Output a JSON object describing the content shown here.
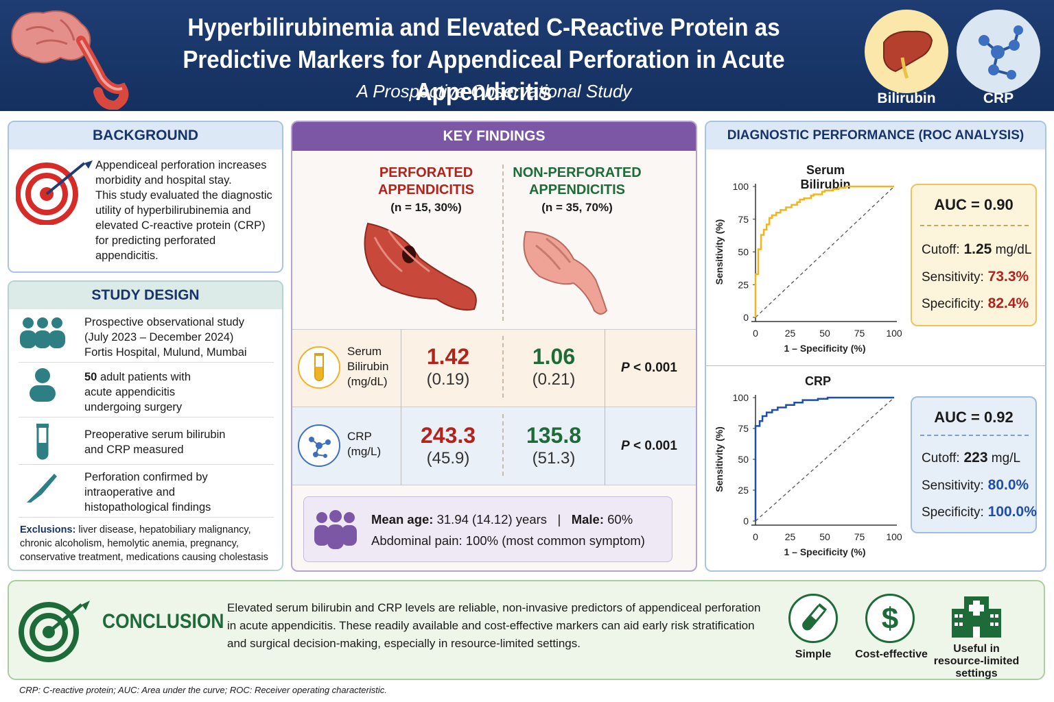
{
  "header": {
    "title_line1": "Hyperbilirubinemia and Elevated C-Reactive Protein as",
    "title_line2": "Predictive Markers for Appendiceal Perforation in Acute Appendicitis",
    "subtitle": "A Prospective Observational Study",
    "badge1": "Bilirubin",
    "badge2": "CRP"
  },
  "background": {
    "heading": "BACKGROUND",
    "l1": "Appendiceal perforation increases",
    "l2": "morbidity and hospital stay.",
    "l3": "This study evaluated the diagnostic",
    "l4": "utility of hyperbilirubinemia and",
    "l5": "elevated C-reactive protein (CRP)",
    "l6": "for predicting perforated",
    "l7": "appendicitis."
  },
  "design": {
    "heading": "STUDY DESIGN",
    "i1": [
      "Prospective observational study",
      "(July 2023 – December 2024)",
      "Fortis Hospital, Mulund, Mumbai"
    ],
    "i2_num": "50",
    "i2": [
      " adult patients with",
      "acute appendicitis",
      "undergoing surgery"
    ],
    "i3": [
      "Preoperative serum bilirubin",
      "and CRP measured"
    ],
    "i4": [
      "Perforation confirmed by",
      "intraoperative and",
      "histopathological findings"
    ],
    "excl_label": "Exclusions:",
    "excl": [
      " liver disease, hepatobiliary malignancy,",
      "chronic alcoholism, hemolytic anemia, pregnancy,",
      "conservative treatment, medications causing cholestasis"
    ]
  },
  "findings": {
    "heading": "KEY FINDINGS",
    "perf_l1": "PERFORATED",
    "perf_l2": "APPENDICITIS",
    "perf_n": "(n = 15, 30%)",
    "non_l1": "NON-PERFORATED",
    "non_l2": "APPENDICITIS",
    "non_n": "(n = 35, 70%)",
    "bili_label": [
      "Serum",
      "Bilirubin",
      "(mg/dL)"
    ],
    "bili_perf": "1.42",
    "bili_perf_sd": "(0.19)",
    "bili_non": "1.06",
    "bili_non_sd": "(0.21)",
    "bili_p": "P",
    "bili_p_rest": " < 0.001",
    "crp_label": [
      "CRP",
      "(mg/L)"
    ],
    "crp_perf": "243.3",
    "crp_perf_sd": "(45.9)",
    "crp_non": "135.8",
    "crp_non_sd": "(51.3)",
    "crp_p": "P",
    "crp_p_rest": " < 0.001",
    "demo_age_label": "Mean age:",
    "demo_age": " 31.94 (14.12) years",
    "demo_sep": "|",
    "demo_male_label": "Male:",
    "demo_male": " 60%",
    "demo_pain": "Abdominal pain: 100% (most common symptom)"
  },
  "roc": {
    "heading": "DIAGNOSTIC PERFORMANCE (ROC ANALYSIS)",
    "bili": {
      "title": "Serum Bilirubin",
      "auc": "AUC = 0.90",
      "cutoff_label": "Cutoff:",
      "cutoff": " 1.25",
      "cutoff_unit": " mg/dL",
      "sens_label": "Sensitivity:",
      "sens": " 73.3%",
      "spec_label": "Specificity:",
      "spec": " 82.4%"
    },
    "crp": {
      "title": "CRP",
      "auc": "AUC = 0.92",
      "cutoff_label": "Cutoff:",
      "cutoff": " 223",
      "cutoff_unit": " mg/L",
      "sens_label": "Sensitivity:",
      "sens": " 80.0%",
      "spec_label": "Specificity:",
      "spec": " 100.0%"
    },
    "xlabel": "1 – Specificity (%)",
    "ylabel": "Sensitivity (%)",
    "ticks": [
      "0",
      "25",
      "50",
      "75",
      "100"
    ]
  },
  "chart_data": [
    {
      "type": "line",
      "title": "Serum Bilirubin",
      "xlabel": "1 – Specificity (%)",
      "ylabel": "Sensitivity (%)",
      "xlim": [
        0,
        100
      ],
      "ylim": [
        0,
        100
      ],
      "color": "#f0b323",
      "series": [
        {
          "x": [
            0,
            0,
            2,
            2,
            4,
            4,
            6,
            6,
            8,
            8,
            10,
            10,
            12,
            12,
            15,
            15,
            18,
            18,
            22,
            22,
            26,
            26,
            30,
            30,
            32,
            32,
            35,
            35,
            40,
            40,
            42,
            42,
            48,
            48,
            50,
            50,
            56,
            56,
            60,
            60,
            65,
            65,
            72,
            72,
            80,
            80,
            88,
            88,
            94,
            94,
            100
          ],
          "y": [
            0,
            33,
            33,
            52,
            52,
            63,
            63,
            67,
            67,
            71,
            71,
            76,
            76,
            78,
            78,
            80,
            80,
            82,
            82,
            84,
            84,
            86,
            86,
            88,
            88,
            90,
            90,
            91,
            91,
            93,
            93,
            94,
            94,
            96,
            96,
            97,
            97,
            98,
            98,
            99,
            99,
            100,
            100,
            100,
            100,
            100,
            100,
            100,
            100,
            100,
            100
          ]
        },
        {
          "x": [
            0,
            100
          ],
          "y": [
            0,
            100
          ]
        }
      ]
    },
    {
      "type": "line",
      "title": "CRP",
      "xlabel": "1 – Specificity (%)",
      "ylabel": "Sensitivity (%)",
      "xlim": [
        0,
        100
      ],
      "ylim": [
        0,
        100
      ],
      "color": "#1f4fa5",
      "series": [
        {
          "x": [
            0,
            0,
            3,
            3,
            5,
            5,
            8,
            8,
            12,
            12,
            16,
            16,
            22,
            22,
            28,
            28,
            34,
            34,
            45,
            45,
            52,
            52,
            100
          ],
          "y": [
            0,
            77,
            77,
            81,
            81,
            85,
            85,
            88,
            88,
            90,
            90,
            92,
            92,
            94,
            94,
            96,
            96,
            98,
            98,
            99,
            99,
            100,
            100
          ]
        },
        {
          "x": [
            0,
            100
          ],
          "y": [
            0,
            100
          ]
        }
      ]
    }
  ],
  "conclusion": {
    "heading": "CONCLUSION",
    "l1": "Elevated serum bilirubin and CRP levels are reliable, non-invasive predictors of appendiceal perforation",
    "l2": "in acute appendicitis.  These readily available and cost-effective markers can aid early risk stratification",
    "l3": "and surgical decision-making, especially in resource-limited settings.",
    "c1": "Simple",
    "c2": "Cost-effective",
    "c3a": "Useful in",
    "c3b": "resource-limited",
    "c3c": "settings"
  },
  "footnote": "CRP: C-reactive protein; AUC: Area under the curve; ROC: Receiver operating characteristic.",
  "colors": {
    "navy": "#17346a",
    "purple": "#7b57a6",
    "green": "#1e6b3a",
    "red": "#b3221b",
    "bili": "#f0b323",
    "crp": "#1f4fa5"
  }
}
